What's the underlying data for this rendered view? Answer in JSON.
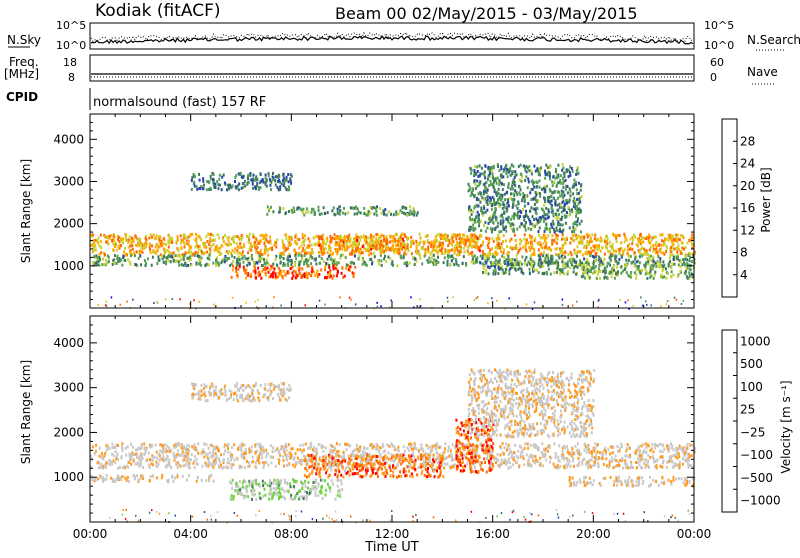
{
  "header": {
    "station": "Kodiak (fitACF)",
    "beam_info": "Beam 00 02/May/2015 - 03/May/2015"
  },
  "strips": {
    "nsky": {
      "left_label": "N.Sky",
      "right_label": "N.Search",
      "left_ticks": [
        "10^5",
        "10^0"
      ],
      "right_ticks": [
        "10^5",
        "10^0"
      ]
    },
    "freq": {
      "left_label_lines": [
        "Freq.",
        "[MHz]"
      ],
      "right_label": "Nave",
      "left_ticks": [
        "18",
        "8"
      ],
      "right_ticks": [
        "60",
        "0"
      ]
    },
    "cpid": {
      "label": "CPID",
      "value": "normalsound (fast) 157 RF"
    }
  },
  "colors": {
    "power_scale": [
      "#0000ff",
      "#2a46a8",
      "#3c7a5a",
      "#55a055",
      "#c8d232",
      "#ffaa00",
      "#ff6a00",
      "#ff0000"
    ],
    "velocity_scale": [
      "#ff0000",
      "#ff6400",
      "#ff9b1e",
      "#c8c8c8",
      "#c8c8c8",
      "#6cd23c",
      "#3c7a5a",
      "#2a46a8"
    ]
  },
  "chart_data": [
    {
      "type": "heatmap",
      "name_panel": "power",
      "ylabel": "Slant Range [km]",
      "y_ticks": [
        "1000",
        "2000",
        "3000",
        "4000"
      ],
      "ylim": [
        0,
        4600
      ],
      "colorbar_label": "Power [dB]",
      "colorbar_ticks": [
        "4",
        "8",
        "12",
        "16",
        "20",
        "24",
        "28"
      ],
      "colorbar_range": [
        0,
        32
      ],
      "x_tick_labels": [
        "00:00",
        "04:00",
        "08:00",
        "12:00",
        "16:00",
        "20:00",
        "00:00"
      ],
      "xlim_hours": [
        0,
        24
      ],
      "bands": [
        {
          "t0": 0.0,
          "t1": 24.0,
          "r0": 1250,
          "r1": 1750,
          "level": 0.68
        },
        {
          "t0": 0.0,
          "t1": 24.0,
          "r0": 1000,
          "r1": 1250,
          "level": 0.4
        },
        {
          "t0": 5.5,
          "t1": 10.5,
          "r0": 700,
          "r1": 1000,
          "level": 0.82
        },
        {
          "t0": 9.0,
          "t1": 12.5,
          "r0": 1300,
          "r1": 1700,
          "level": 0.72
        },
        {
          "t0": 13.5,
          "t1": 15.5,
          "r0": 1350,
          "r1": 1750,
          "level": 0.72
        },
        {
          "t0": 15.5,
          "t1": 20.0,
          "r0": 800,
          "r1": 1100,
          "level": 0.4
        },
        {
          "t0": 7.0,
          "t1": 13.0,
          "r0": 2200,
          "r1": 2400,
          "level": 0.38
        },
        {
          "t0": 4.0,
          "t1": 8.0,
          "r0": 2800,
          "r1": 3200,
          "level": 0.3
        },
        {
          "t0": 15.0,
          "t1": 19.5,
          "r0": 1800,
          "r1": 3400,
          "level": 0.35
        },
        {
          "t0": 19.5,
          "t1": 24.0,
          "r0": 700,
          "r1": 1000,
          "level": 0.45
        }
      ]
    },
    {
      "type": "heatmap",
      "name_panel": "velocity",
      "ylabel": "Slant Range [km]",
      "y_ticks": [
        "1000",
        "2000",
        "3000",
        "4000"
      ],
      "ylim": [
        0,
        4600
      ],
      "colorbar_label": "Velocity [m s⁻¹]",
      "colorbar_ticks": [
        "1000",
        "500",
        "100",
        "25",
        "−25",
        "−100",
        "−500",
        "−1000"
      ],
      "x_tick_labels": [
        "00:00",
        "04:00",
        "08:00",
        "12:00",
        "16:00",
        "20:00",
        "00:00"
      ],
      "xlabel": "Time UT",
      "xlim_hours": [
        0,
        24
      ],
      "bands": [
        {
          "t0": 0.0,
          "t1": 24.0,
          "r0": 1200,
          "r1": 1750,
          "level": 0.45
        },
        {
          "t0": 0.0,
          "t1": 5.0,
          "r0": 900,
          "r1": 1050,
          "level": 0.45
        },
        {
          "t0": 5.5,
          "t1": 10.0,
          "r0": 500,
          "r1": 950,
          "level": 0.62
        },
        {
          "t0": 8.5,
          "t1": 14.0,
          "r0": 1000,
          "r1": 1500,
          "level": 0.22
        },
        {
          "t0": 14.5,
          "t1": 16.0,
          "r0": 1100,
          "r1": 2300,
          "level": 0.18
        },
        {
          "t0": 4.0,
          "t1": 8.0,
          "r0": 2700,
          "r1": 3100,
          "level": 0.45
        },
        {
          "t0": 15.0,
          "t1": 20.0,
          "r0": 1900,
          "r1": 3400,
          "level": 0.45
        },
        {
          "t0": 19.0,
          "t1": 24.0,
          "r0": 800,
          "r1": 1000,
          "level": 0.45
        }
      ]
    }
  ]
}
